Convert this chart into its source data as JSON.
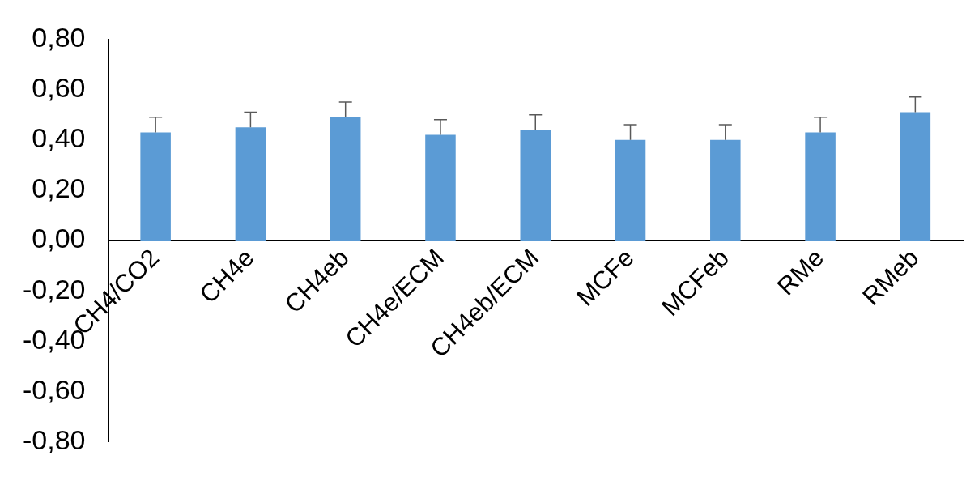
{
  "chart_data": {
    "type": "bar",
    "categories": [
      "CH4/CO2",
      "CH4e",
      "CH4eb",
      "CH4e/ECM",
      "CH4eb/ECM",
      "MCFe",
      "MCFeb",
      "RMe",
      "RMeb"
    ],
    "values": [
      0.43,
      0.45,
      0.49,
      0.42,
      0.44,
      0.4,
      0.4,
      0.43,
      0.51
    ],
    "errors": [
      [
        0.43,
        0.49
      ],
      [
        0.45,
        0.51
      ],
      [
        0.49,
        0.55
      ],
      [
        0.42,
        0.48
      ],
      [
        0.44,
        0.5
      ],
      [
        0.4,
        0.46
      ],
      [
        0.4,
        0.46
      ],
      [
        0.43,
        0.49
      ],
      [
        0.51,
        0.57
      ]
    ],
    "color": "#5b9bd5",
    "ylim": [
      -0.8,
      0.8
    ],
    "yticks": [
      {
        "value": -0.8,
        "label": "-0,80"
      },
      {
        "value": -0.6,
        "label": "-0,60"
      },
      {
        "value": -0.4,
        "label": "-0,40"
      },
      {
        "value": -0.2,
        "label": "-0,20"
      },
      {
        "value": 0,
        "label": "0,00"
      },
      {
        "value": 0.2,
        "label": "0,20"
      },
      {
        "value": 0.4,
        "label": "0,40"
      },
      {
        "value": 0.6,
        "label": "0,60"
      },
      {
        "value": 0.8,
        "label": "0,80"
      }
    ],
    "grid": false,
    "legend": false
  }
}
